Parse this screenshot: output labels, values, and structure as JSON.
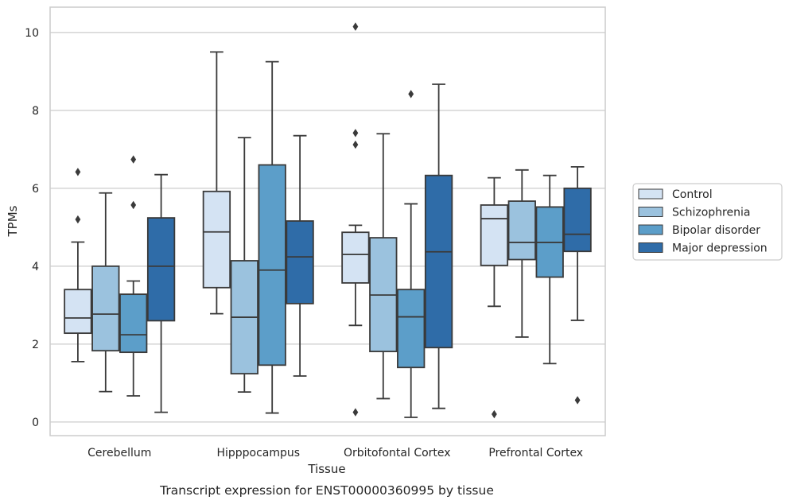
{
  "chart_data": {
    "type": "boxplot",
    "title": "",
    "xlabel": "Tissue",
    "ylabel": "TPMs",
    "caption": "Transcript expression for ENST00000360995 by tissue",
    "ylim": [
      -0.35,
      10.65
    ],
    "yticks": [
      0,
      2,
      4,
      6,
      8,
      10
    ],
    "grid": "horizontal",
    "legend_position": "right",
    "categories": [
      "Cerebellum",
      "Hipppocampus",
      "Orbitofontal Cortex",
      "Prefrontal Cortex"
    ],
    "series": [
      {
        "name": "Control",
        "color": "#d4e3f3",
        "boxes": [
          {
            "whislo": 1.55,
            "q1": 2.28,
            "med": 2.67,
            "q3": 3.4,
            "whishi": 4.62,
            "fliers": [
              5.2,
              6.42
            ]
          },
          {
            "whislo": 2.78,
            "q1": 3.45,
            "med": 4.88,
            "q3": 5.92,
            "whishi": 9.5,
            "fliers": []
          },
          {
            "whislo": 2.48,
            "q1": 3.57,
            "med": 4.3,
            "q3": 4.87,
            "whishi": 5.05,
            "fliers": [
              7.12,
              7.42,
              10.15,
              0.25
            ]
          },
          {
            "whislo": 2.97,
            "q1": 4.02,
            "med": 5.22,
            "q3": 5.57,
            "whishi": 6.27,
            "fliers": [
              0.2
            ]
          }
        ]
      },
      {
        "name": "Schizophrenia",
        "color": "#9bc2de",
        "boxes": [
          {
            "whislo": 0.78,
            "q1": 1.83,
            "med": 2.77,
            "q3": 4.0,
            "whishi": 5.88,
            "fliers": []
          },
          {
            "whislo": 0.77,
            "q1": 1.24,
            "med": 2.69,
            "q3": 4.14,
            "whishi": 7.3,
            "fliers": []
          },
          {
            "whislo": 0.6,
            "q1": 1.81,
            "med": 3.26,
            "q3": 4.73,
            "whishi": 7.4,
            "fliers": []
          },
          {
            "whislo": 2.18,
            "q1": 4.17,
            "med": 4.61,
            "q3": 5.67,
            "whishi": 6.47,
            "fliers": []
          }
        ]
      },
      {
        "name": "Bipolar disorder",
        "color": "#5c9ec9",
        "boxes": [
          {
            "whislo": 0.67,
            "q1": 1.79,
            "med": 2.24,
            "q3": 3.28,
            "whishi": 3.62,
            "fliers": [
              5.57,
              6.74
            ]
          },
          {
            "whislo": 0.23,
            "q1": 1.46,
            "med": 3.9,
            "q3": 6.6,
            "whishi": 9.25,
            "fliers": []
          },
          {
            "whislo": 0.12,
            "q1": 1.4,
            "med": 2.7,
            "q3": 3.4,
            "whishi": 5.6,
            "fliers": [
              8.42
            ]
          },
          {
            "whislo": 1.5,
            "q1": 3.72,
            "med": 4.61,
            "q3": 5.52,
            "whishi": 6.33,
            "fliers": []
          }
        ]
      },
      {
        "name": "Major depression",
        "color": "#2f6ca8",
        "boxes": [
          {
            "whislo": 0.25,
            "q1": 2.6,
            "med": 4.0,
            "q3": 5.24,
            "whishi": 6.35,
            "fliers": []
          },
          {
            "whislo": 1.18,
            "q1": 3.04,
            "med": 4.24,
            "q3": 5.16,
            "whishi": 7.35,
            "fliers": []
          },
          {
            "whislo": 0.35,
            "q1": 1.91,
            "med": 4.37,
            "q3": 6.33,
            "whishi": 8.67,
            "fliers": []
          },
          {
            "whislo": 2.61,
            "q1": 4.38,
            "med": 4.82,
            "q3": 6.0,
            "whishi": 6.55,
            "fliers": [
              0.56
            ]
          }
        ]
      }
    ]
  },
  "colors": {
    "grid": "#cccccc",
    "frame": "#cccccc",
    "lines": "#3a3a3a"
  }
}
